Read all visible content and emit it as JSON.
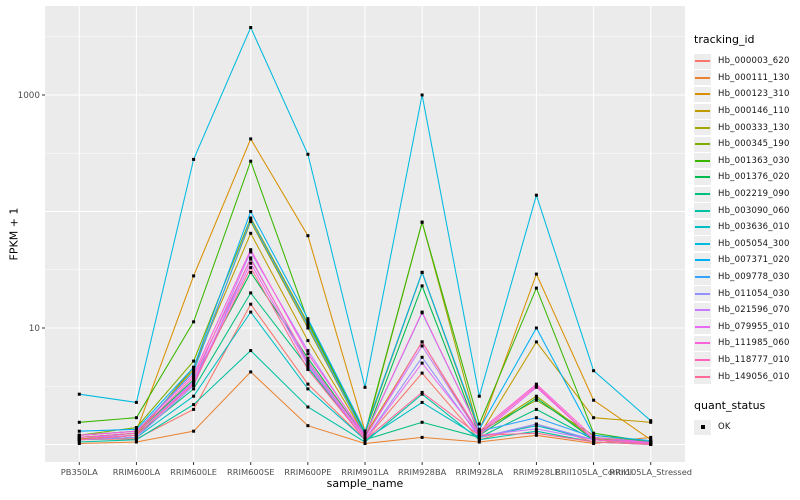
{
  "y_axis": {
    "title": "FPKM + 1",
    "tick_labels": [
      "10",
      "1000"
    ]
  },
  "x_axis": {
    "title": "sample_name"
  },
  "legend": {
    "tracking_title": "tracking_id",
    "quant_title": "quant_status",
    "quant_items": [
      {
        "label": "OK",
        "marker": "black-square"
      }
    ]
  },
  "colors": {
    "panel_bg": "#EBEBEB",
    "grid": "#FFFFFF",
    "tick_label": "#4D4D4D",
    "tick_mark": "#333333",
    "point": "#000000"
  },
  "chart_data": {
    "type": "line",
    "title": "",
    "xlabel": "sample_name",
    "ylabel": "FPKM + 1",
    "y_scale": "log10",
    "ylim": [
      0.72,
      5800
    ],
    "yticks": [
      10,
      1000
    ],
    "grid": true,
    "legend_position": "right",
    "point_marker": {
      "shape": "square",
      "color": "#000000",
      "size": 3
    },
    "quant_status": "OK",
    "categories": [
      "PB350LA",
      "RRIM600LA",
      "RRIM600LE",
      "RRIM600SE",
      "RRIM600PE",
      "RRIM901LA",
      "RRIM928BA",
      "RRIM928LA",
      "RRIM928LE",
      "RRII105LA_Control",
      "RRII105LA_Stressed"
    ],
    "series": [
      {
        "name": "Hb_000003_620",
        "color": "#F8766D",
        "values": [
          1.1,
          1.12,
          2.0,
          16,
          3.3,
          1.1,
          4.1,
          1.1,
          1.5,
          1.05,
          1.02
        ]
      },
      {
        "name": "Hb_000111_130",
        "color": "#EA8331",
        "values": [
          1.02,
          1.05,
          1.3,
          4.2,
          1.45,
          1.02,
          1.15,
          1.05,
          1.2,
          1.02,
          1.15
        ]
      },
      {
        "name": "Hb_000123_310",
        "color": "#D89000",
        "values": [
          1.2,
          1.3,
          28,
          420,
          62,
          1.3,
          30,
          1.3,
          29,
          2.4,
          1.1
        ]
      },
      {
        "name": "Hb_000146_110",
        "color": "#C09B00",
        "values": [
          1.12,
          1.2,
          4.6,
          65,
          7.8,
          1.2,
          7.6,
          1.2,
          7.6,
          1.7,
          1.55
        ]
      },
      {
        "name": "Hb_000333_130",
        "color": "#A3A500",
        "values": [
          1.15,
          1.25,
          4.4,
          82,
          10,
          1.2,
          81,
          1.25,
          2.6,
          1.12,
          1.05
        ]
      },
      {
        "name": "Hb_000345_190",
        "color": "#7CAE00",
        "values": [
          1.2,
          1.4,
          5.2,
          88,
          11,
          1.25,
          30,
          1.3,
          2.4,
          1.2,
          1.05
        ]
      },
      {
        "name": "Hb_001363_030",
        "color": "#39B600",
        "values": [
          1.55,
          1.7,
          11.3,
          270,
          11.5,
          1.25,
          81,
          1.5,
          22,
          1.25,
          1.05
        ]
      },
      {
        "name": "Hb_001376_020",
        "color": "#00BB4E",
        "values": [
          1.15,
          1.25,
          3.6,
          30,
          5.5,
          1.15,
          23,
          1.2,
          2.5,
          1.1,
          1.04
        ]
      },
      {
        "name": "Hb_002219_090",
        "color": "#00BF7D",
        "values": [
          1.1,
          1.2,
          3.0,
          20,
          4.6,
          1.1,
          1.55,
          1.15,
          2.0,
          1.1,
          1.02
        ]
      },
      {
        "name": "Hb_003090_060",
        "color": "#00C1A3",
        "values": [
          1.05,
          1.1,
          2.2,
          6.4,
          2.1,
          1.05,
          2.7,
          1.1,
          1.3,
          1.05,
          1.0
        ]
      },
      {
        "name": "Hb_003636_010",
        "color": "#00BFC4",
        "values": [
          1.1,
          1.15,
          2.6,
          13.7,
          3.0,
          1.1,
          2.3,
          1.15,
          1.45,
          1.1,
          1.02
        ]
      },
      {
        "name": "Hb_005054_300",
        "color": "#00BAE0",
        "values": [
          2.7,
          2.3,
          280,
          3800,
          310,
          3.1,
          1000,
          2.6,
          138,
          4.3,
          1.6
        ]
      },
      {
        "name": "Hb_007371_020",
        "color": "#00B0F6",
        "values": [
          1.3,
          1.35,
          4.6,
          100,
          12,
          1.3,
          30,
          1.35,
          10,
          1.2,
          1.08
        ]
      },
      {
        "name": "Hb_009778_030",
        "color": "#35A2FF",
        "values": [
          1.2,
          1.3,
          4.2,
          85,
          10.5,
          1.2,
          13.5,
          1.3,
          1.7,
          1.15,
          1.05
        ]
      },
      {
        "name": "Hb_011054_030",
        "color": "#9590FF",
        "values": [
          1.1,
          1.15,
          3.2,
          40,
          5.0,
          1.1,
          5.6,
          1.15,
          1.5,
          1.1,
          1.02
        ]
      },
      {
        "name": "Hb_021596_070",
        "color": "#C77CFF",
        "values": [
          1.15,
          1.2,
          3.5,
          45,
          6.4,
          1.15,
          7.0,
          1.2,
          1.36,
          1.1,
          1.04
        ]
      },
      {
        "name": "Hb_079955_010",
        "color": "#E76BF3",
        "values": [
          1.1,
          1.2,
          3.4,
          36,
          4.8,
          1.1,
          5.0,
          1.2,
          3.1,
          1.1,
          1.02
        ]
      },
      {
        "name": "Hb_111985_060",
        "color": "#FA62DB",
        "values": [
          1.2,
          1.3,
          4.0,
          47,
          6.0,
          1.2,
          13.7,
          1.3,
          3.3,
          1.15,
          1.04
        ]
      },
      {
        "name": "Hb_118777_010",
        "color": "#FF62BC",
        "values": [
          1.15,
          1.25,
          3.8,
          39,
          5.2,
          1.15,
          7.6,
          1.25,
          3.2,
          1.1,
          1.02
        ]
      },
      {
        "name": "Hb_149056_010",
        "color": "#FF6A98",
        "values": [
          1.1,
          1.2,
          3.3,
          33,
          4.4,
          1.1,
          2.8,
          1.2,
          1.25,
          1.05,
          1.0
        ]
      }
    ]
  }
}
